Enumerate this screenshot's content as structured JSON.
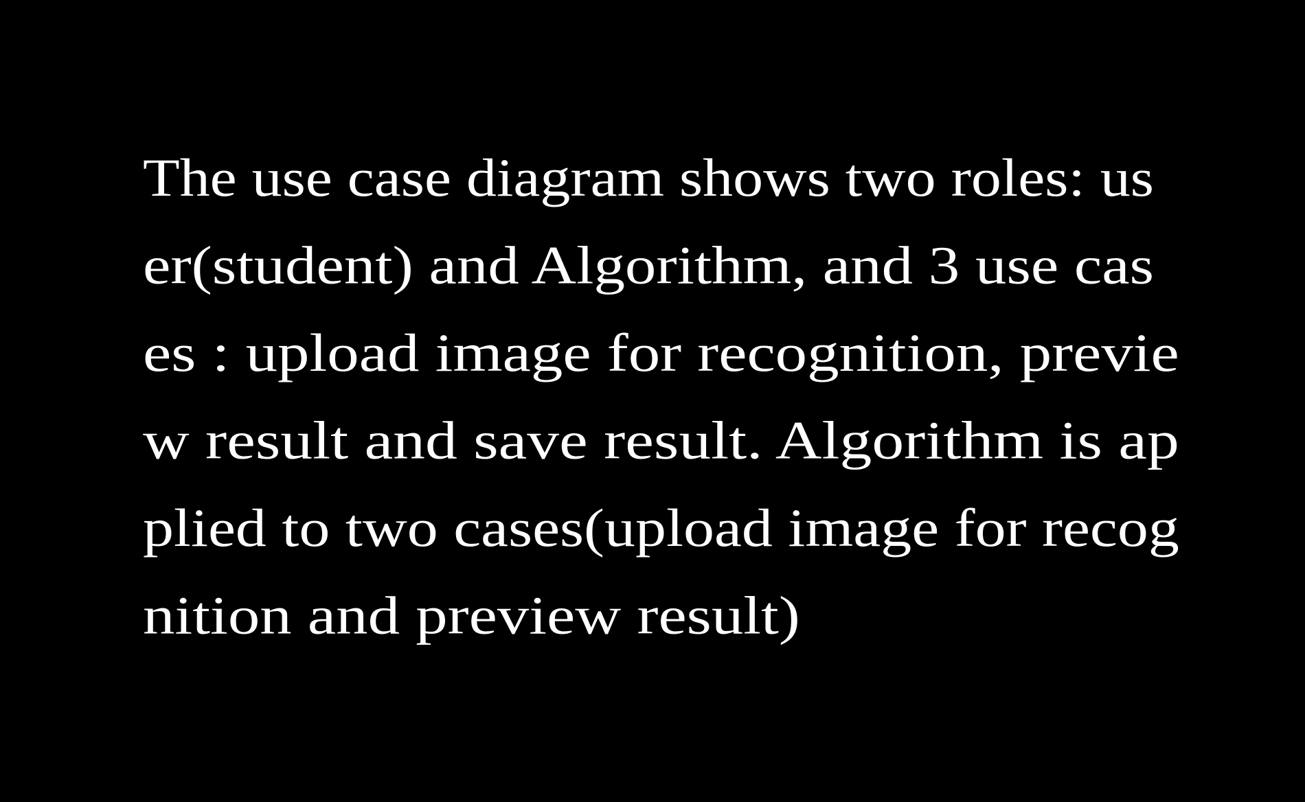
{
  "text": {
    "lines": [
      "The use case diagram shows two roles: us",
      "er(student) and Algorithm, and 3 use cas",
      "es : upload image for recognition, previe",
      "w result and save result. Algorithm is ap",
      "plied to two cases(upload image for recog",
      "nition and preview result)"
    ]
  }
}
